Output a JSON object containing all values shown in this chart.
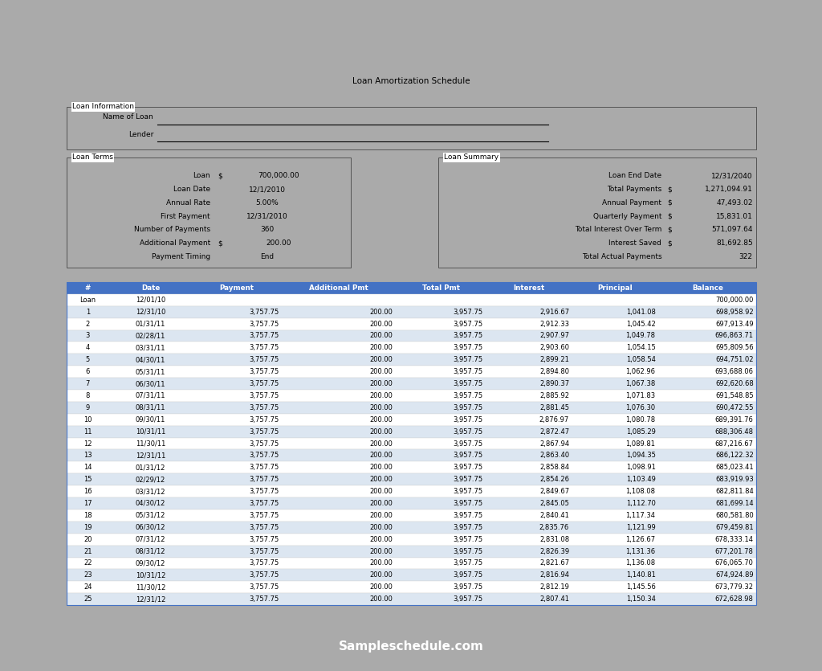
{
  "title": "Loan Amortization Schedule",
  "page_bg": "#aaaaaa",
  "paper_bg": "#ffffff",
  "footer_text": "Sampleschedule.com",
  "footer_bg": "#2c2c2c",
  "footer_color": "#ffffff",
  "loan_info_box": {
    "label": "Loan Information",
    "name_of_loan_label": "Name of Loan",
    "lender_label": "Lender"
  },
  "loan_terms": {
    "label": "Loan Terms",
    "fields": [
      [
        "Loan",
        "$",
        "700,000.00"
      ],
      [
        "Loan Date",
        "",
        "12/1/2010"
      ],
      [
        "Annual Rate",
        "",
        "5.00%"
      ],
      [
        "First Payment",
        "",
        "12/31/2010"
      ],
      [
        "Number of Payments",
        "",
        "360"
      ],
      [
        "Additional Payment",
        "$",
        "200.00"
      ],
      [
        "Payment Timing",
        "",
        "End"
      ]
    ]
  },
  "loan_summary": {
    "label": "Loan Summary",
    "fields": [
      [
        "Loan End Date",
        "",
        "12/31/2040"
      ],
      [
        "Total Payments",
        "$",
        "1,271,094.91"
      ],
      [
        "Annual Payment",
        "$",
        "47,493.02"
      ],
      [
        "Quarterly Payment",
        "$",
        "15,831.01"
      ],
      [
        "Total Interest Over Term",
        "$",
        "571,097.64"
      ],
      [
        "Interest Saved",
        "$",
        "81,692.85"
      ],
      [
        "Total Actual Payments",
        "",
        "322"
      ]
    ]
  },
  "table_header_bg": "#4472c4",
  "table_header_color": "#ffffff",
  "table_row_alt_bg": "#dce6f1",
  "table_row_bg": "#ffffff",
  "table_border_color": "#4472c4",
  "headers": [
    "#",
    "Date",
    "Payment",
    "Additional Pmt",
    "Total Pmt",
    "Interest",
    "Principal",
    "Balance"
  ],
  "rows": [
    [
      "Loan",
      "12/01/10",
      "",
      "",
      "",
      "",
      "",
      "700,000.00"
    ],
    [
      "1",
      "12/31/10",
      "3,757.75",
      "200.00",
      "3,957.75",
      "2,916.67",
      "1,041.08",
      "698,958.92"
    ],
    [
      "2",
      "01/31/11",
      "3,757.75",
      "200.00",
      "3,957.75",
      "2,912.33",
      "1,045.42",
      "697,913.49"
    ],
    [
      "3",
      "02/28/11",
      "3,757.75",
      "200.00",
      "3,957.75",
      "2,907.97",
      "1,049.78",
      "696,863.71"
    ],
    [
      "4",
      "03/31/11",
      "3,757.75",
      "200.00",
      "3,957.75",
      "2,903.60",
      "1,054.15",
      "695,809.56"
    ],
    [
      "5",
      "04/30/11",
      "3,757.75",
      "200.00",
      "3,957.75",
      "2,899.21",
      "1,058.54",
      "694,751.02"
    ],
    [
      "6",
      "05/31/11",
      "3,757.75",
      "200.00",
      "3,957.75",
      "2,894.80",
      "1,062.96",
      "693,688.06"
    ],
    [
      "7",
      "06/30/11",
      "3,757.75",
      "200.00",
      "3,957.75",
      "2,890.37",
      "1,067.38",
      "692,620.68"
    ],
    [
      "8",
      "07/31/11",
      "3,757.75",
      "200.00",
      "3,957.75",
      "2,885.92",
      "1,071.83",
      "691,548.85"
    ],
    [
      "9",
      "08/31/11",
      "3,757.75",
      "200.00",
      "3,957.75",
      "2,881.45",
      "1,076.30",
      "690,472.55"
    ],
    [
      "10",
      "09/30/11",
      "3,757.75",
      "200.00",
      "3,957.75",
      "2,876.97",
      "1,080.78",
      "689,391.76"
    ],
    [
      "11",
      "10/31/11",
      "3,757.75",
      "200.00",
      "3,957.75",
      "2,872.47",
      "1,085.29",
      "688,306.48"
    ],
    [
      "12",
      "11/30/11",
      "3,757.75",
      "200.00",
      "3,957.75",
      "2,867.94",
      "1,089.81",
      "687,216.67"
    ],
    [
      "13",
      "12/31/11",
      "3,757.75",
      "200.00",
      "3,957.75",
      "2,863.40",
      "1,094.35",
      "686,122.32"
    ],
    [
      "14",
      "01/31/12",
      "3,757.75",
      "200.00",
      "3,957.75",
      "2,858.84",
      "1,098.91",
      "685,023.41"
    ],
    [
      "15",
      "02/29/12",
      "3,757.75",
      "200.00",
      "3,957.75",
      "2,854.26",
      "1,103.49",
      "683,919.93"
    ],
    [
      "16",
      "03/31/12",
      "3,757.75",
      "200.00",
      "3,957.75",
      "2,849.67",
      "1,108.08",
      "682,811.84"
    ],
    [
      "17",
      "04/30/12",
      "3,757.75",
      "200.00",
      "3,957.75",
      "2,845.05",
      "1,112.70",
      "681,699.14"
    ],
    [
      "18",
      "05/31/12",
      "3,757.75",
      "200.00",
      "3,957.75",
      "2,840.41",
      "1,117.34",
      "680,581.80"
    ],
    [
      "19",
      "06/30/12",
      "3,757.75",
      "200.00",
      "3,957.75",
      "2,835.76",
      "1,121.99",
      "679,459.81"
    ],
    [
      "20",
      "07/31/12",
      "3,757.75",
      "200.00",
      "3,957.75",
      "2,831.08",
      "1,126.67",
      "678,333.14"
    ],
    [
      "21",
      "08/31/12",
      "3,757.75",
      "200.00",
      "3,957.75",
      "2,826.39",
      "1,131.36",
      "677,201.78"
    ],
    [
      "22",
      "09/30/12",
      "3,757.75",
      "200.00",
      "3,957.75",
      "2,821.67",
      "1,136.08",
      "676,065.70"
    ],
    [
      "23",
      "10/31/12",
      "3,757.75",
      "200.00",
      "3,957.75",
      "2,816.94",
      "1,140.81",
      "674,924.89"
    ],
    [
      "24",
      "11/30/12",
      "3,757.75",
      "200.00",
      "3,957.75",
      "2,812.19",
      "1,145.56",
      "673,779.32"
    ],
    [
      "25",
      "12/31/12",
      "3,757.75",
      "200.00",
      "3,957.75",
      "2,807.41",
      "1,150.34",
      "672,628.98"
    ]
  ]
}
